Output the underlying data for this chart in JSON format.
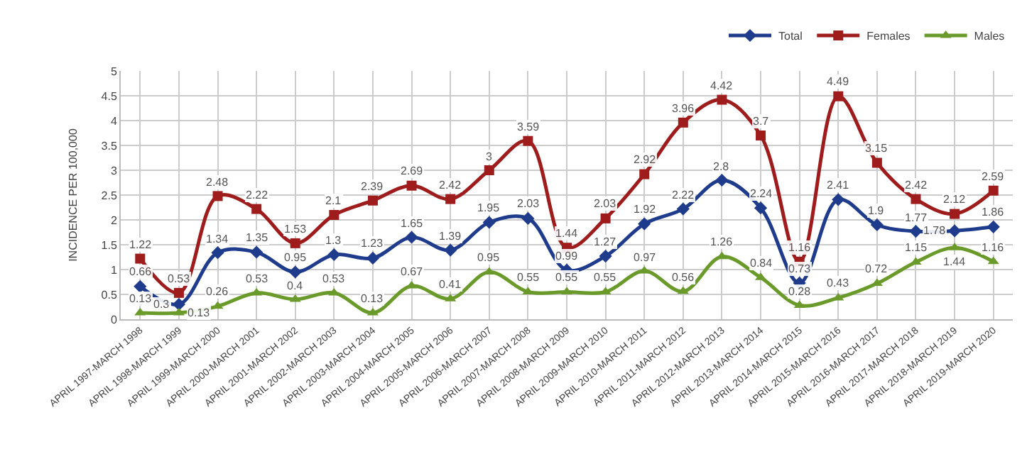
{
  "chart_data": {
    "type": "line",
    "ylabel": "INCIDENCE PER 100,000",
    "categories": [
      "APRIL 1997-MARCH 1998",
      "APRIL 1998-MARCH 1999",
      "APRIL 1999-MARCH 2000",
      "APRIL 2000-MARCH 2001",
      "APRIL 2001-MARCH 2002",
      "APRIL 2002-MARCH 2003",
      "APRIL 2003-MARCH 2004",
      "APRIL 2004-MARCH 2005",
      "APRIL 2005-MARCH 2006",
      "APRIL 2006-MARCH 2007",
      "APRIL 2007-MARCH 2008",
      "APRIL 2008-MARCH 2009",
      "APRIL 2009-MARCH 2010",
      "APRIL 2010-MARCH 2011",
      "APRIL 2011-MARCH 2012",
      "APRIL 2012-MARCH 2013",
      "APRIL 2013-MARCH 2014",
      "APRIL 2014-MARCH 2015",
      "APRIL 2015-MARCH 2016",
      "APRIL 2016-MARCH 2017",
      "APRIL 2017-MARCH 2018",
      "APRIL 2018-MARCH 2019",
      "APRIL 2019-MARCH 2020"
    ],
    "series": [
      {
        "name": "Total",
        "color": "#1f3b8c",
        "marker": "diamond",
        "values": [
          0.66,
          0.3,
          1.34,
          1.35,
          0.95,
          1.3,
          1.23,
          1.65,
          1.39,
          1.95,
          2.03,
          0.99,
          1.27,
          1.92,
          2.22,
          2.8,
          2.24,
          0.73,
          2.41,
          1.9,
          1.77,
          1.78,
          1.86
        ]
      },
      {
        "name": "Females",
        "color": "#9e1c1c",
        "marker": "square",
        "values": [
          1.22,
          0.53,
          2.48,
          2.22,
          1.53,
          2.1,
          2.39,
          2.69,
          2.42,
          3,
          3.59,
          1.44,
          2.03,
          2.92,
          3.96,
          4.42,
          3.7,
          1.16,
          4.49,
          3.15,
          2.42,
          2.12,
          2.59
        ]
      },
      {
        "name": "Males",
        "color": "#6a9a2a",
        "marker": "triangle",
        "values": [
          0.13,
          0.13,
          0.26,
          0.53,
          0.4,
          0.53,
          0.13,
          0.67,
          0.41,
          0.95,
          0.55,
          0.55,
          0.55,
          0.97,
          0.56,
          1.26,
          0.84,
          0.28,
          0.43,
          0.72,
          1.15,
          1.44,
          1.16
        ]
      }
    ],
    "ylim": [
      0,
      5
    ],
    "yticks": [
      0,
      0.5,
      1,
      1.5,
      2,
      2.5,
      3,
      3.5,
      4,
      4.5,
      5
    ],
    "grid": true,
    "legend": "top right",
    "data_labels": true,
    "line_style": "solid"
  }
}
